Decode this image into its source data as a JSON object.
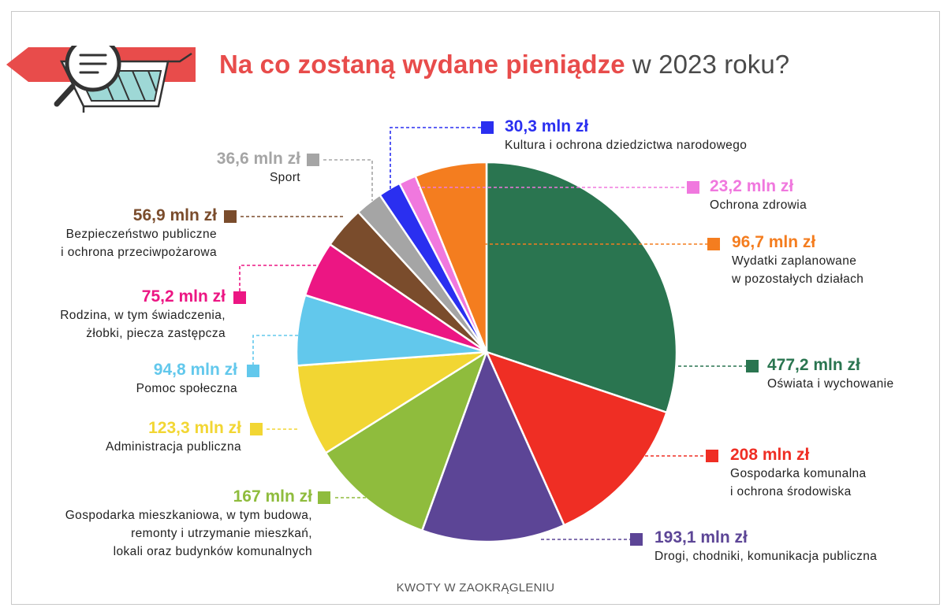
{
  "header": {
    "title_highlight": "Na co zostaną wydane pieniądze",
    "title_rest": " w 2023 roku?"
  },
  "footer": {
    "note": "KWOTY W ZAOKRĄGLENIU"
  },
  "icons": {
    "banner": "shopping-cart-magnifier-icon"
  },
  "colors": {
    "accent": "#e84c4b"
  },
  "chart_data": {
    "type": "pie",
    "title": "Na co zostaną wydane pieniądze w 2023 roku?",
    "unit": "mln zł",
    "slices": [
      {
        "value_label": "477,2 mln zł",
        "value": 477.2,
        "label": [
          "Oświata i wychowanie"
        ],
        "color": "#2a7550"
      },
      {
        "value_label": "208 mln zł",
        "value": 208,
        "label": [
          "Gospodarka komunalna",
          "i ochrona środowiska"
        ],
        "color": "#ef2e24"
      },
      {
        "value_label": "193,1 mln zł",
        "value": 193.1,
        "label": [
          "Drogi, chodniki, komunikacja publiczna"
        ],
        "color": "#5c4596"
      },
      {
        "value_label": "167 mln zł",
        "value": 167,
        "label": [
          "Gospodarka mieszkaniowa, w tym budowa,",
          "remonty i utrzymanie mieszkań,",
          "lokali oraz budynków komunalnych"
        ],
        "color": "#8fbc3d"
      },
      {
        "value_label": "123,3 mln zł",
        "value": 123.3,
        "label": [
          "Administracja publiczna"
        ],
        "color": "#f2d633"
      },
      {
        "value_label": "94,8 mln zł",
        "value": 94.8,
        "label": [
          "Pomoc społeczna"
        ],
        "color": "#62c8ec"
      },
      {
        "value_label": "75,2 mln zł",
        "value": 75.2,
        "label": [
          "Rodzina, w tym świadczenia,",
          "żłobki, piecza zastępcza"
        ],
        "color": "#ec1683"
      },
      {
        "value_label": "56,9 mln zł",
        "value": 56.9,
        "label": [
          "Bezpieczeństwo publiczne",
          "i ochrona przeciwpożarowa"
        ],
        "color": "#7a4c2c"
      },
      {
        "value_label": "36,6 mln zł",
        "value": 36.6,
        "label": [
          "Sport"
        ],
        "color": "#a5a5a5"
      },
      {
        "value_label": "30,3 mln zł",
        "value": 30.3,
        "label": [
          "Kultura i ochrona dziedzictwa narodowego"
        ],
        "color": "#2a2ff0"
      },
      {
        "value_label": "23,2 mln zł",
        "value": 23.2,
        "label": [
          "Ochrona zdrowia"
        ],
        "color": "#f078de"
      },
      {
        "value_label": "96,7 mln zł",
        "value": 96.7,
        "label": [
          "Wydatki zaplanowane",
          "w pozostałych działach"
        ],
        "color": "#f47d1f"
      }
    ]
  }
}
